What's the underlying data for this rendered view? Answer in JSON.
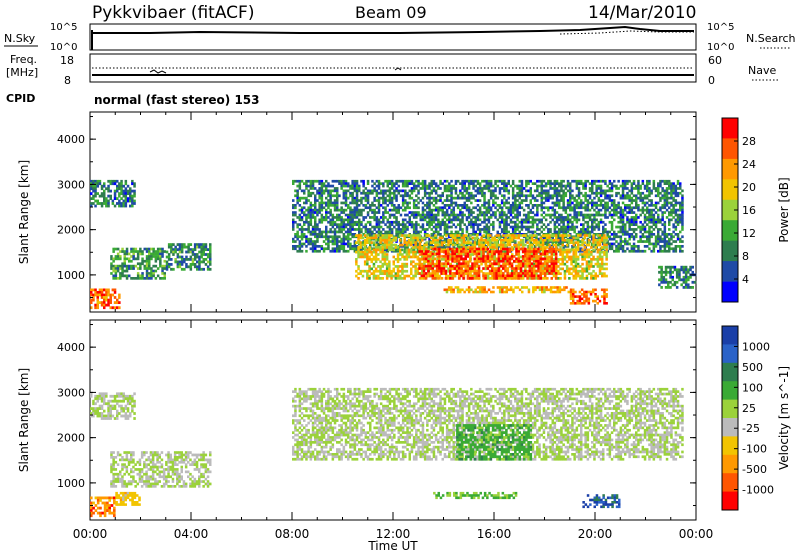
{
  "header": {
    "title": "Pykkvibaer (fitACF)",
    "beam": "Beam 09",
    "date": "14/Mar/2010"
  },
  "panels": {
    "nsky_label": "N.Sky",
    "nsearch_label": "N.Search",
    "freq_label_line1": "Freq.",
    "freq_label_line2": "[MHz]",
    "nave_label": "Nave",
    "cpid_label": "CPID",
    "cpid_value": "normal (fast stereo) 153",
    "nsky_ticks": [
      "10^5",
      "10^0"
    ],
    "nsearch_ticks": [
      "10^5",
      "10^0"
    ],
    "freq_ticks": [
      "18",
      "8"
    ],
    "nave_ticks": [
      "60",
      "0"
    ]
  },
  "colors": {
    "power": [
      "#0000ff",
      "#1f4aa6",
      "#2e7d4f",
      "#3aaa35",
      "#9bd23a",
      "#f2c400",
      "#ff9900",
      "#ff5500",
      "#ff0000"
    ],
    "velocity": [
      "#1a3fa8",
      "#2a62c8",
      "#2e7d4f",
      "#3aaa35",
      "#9bd23a",
      "#bbbbbb",
      "#f2c400",
      "#ff9900",
      "#ff5500",
      "#ff0000"
    ],
    "ground_scatter": "#bbbbbb"
  },
  "chart_data": [
    {
      "type": "heatmap",
      "title": "",
      "xlabel": "Time UT",
      "ylabel": "Slant Range [km]",
      "x_ticks": [
        "00:00",
        "04:00",
        "08:00",
        "12:00",
        "16:00",
        "20:00",
        "00:00"
      ],
      "y_ticks": [
        "1000",
        "2000",
        "3000",
        "4000"
      ],
      "ylim": [
        180,
        4600
      ],
      "colorbar": {
        "label": "Power [dB]",
        "ticks": [
          "28",
          "24",
          "20",
          "16",
          "12",
          "8",
          "4"
        ],
        "range": [
          0,
          30
        ]
      },
      "regions": [
        {
          "t0": 0.0,
          "t1": 1.2,
          "r0": 250,
          "r1": 700,
          "value": 24
        },
        {
          "t0": 0.0,
          "t1": 1.8,
          "r0": 2500,
          "r1": 3100,
          "value": 8
        },
        {
          "t0": 0.8,
          "t1": 3.0,
          "r0": 900,
          "r1": 1600,
          "value": 10
        },
        {
          "t0": 3.0,
          "t1": 4.8,
          "r0": 1100,
          "r1": 1700,
          "value": 9
        },
        {
          "t0": 8.0,
          "t1": 23.5,
          "r0": 1500,
          "r1": 3100,
          "value": 8
        },
        {
          "t0": 10.5,
          "t1": 20.5,
          "r0": 900,
          "r1": 1900,
          "value": 18
        },
        {
          "t0": 13.0,
          "t1": 18.5,
          "r0": 900,
          "r1": 1600,
          "value": 26
        },
        {
          "t0": 14.0,
          "t1": 19.0,
          "r0": 600,
          "r1": 750,
          "value": 20
        },
        {
          "t0": 19.0,
          "t1": 20.5,
          "r0": 350,
          "r1": 700,
          "value": 24
        },
        {
          "t0": 22.5,
          "t1": 24.0,
          "r0": 700,
          "r1": 1200,
          "value": 8
        }
      ]
    },
    {
      "type": "heatmap",
      "title": "",
      "xlabel": "Time UT",
      "ylabel": "Slant Range [km]",
      "x_ticks": [
        "00:00",
        "04:00",
        "08:00",
        "12:00",
        "16:00",
        "20:00",
        "00:00"
      ],
      "y_ticks": [
        "1000",
        "2000",
        "3000",
        "4000"
      ],
      "ylim": [
        180,
        4600
      ],
      "colorbar": {
        "label": "Velocity [m s^-1]",
        "ticks": [
          "1000",
          "500",
          "100",
          "25",
          "-25",
          "-100",
          "-500",
          "-1000"
        ],
        "range": [
          -1000,
          1000
        ]
      },
      "regions": [
        {
          "t0": 0.0,
          "t1": 1.8,
          "r0": 2400,
          "r1": 3000,
          "value": 0
        },
        {
          "t0": 0.0,
          "t1": 1.0,
          "r0": 250,
          "r1": 700,
          "value": -600
        },
        {
          "t0": 0.8,
          "t1": 4.8,
          "r0": 900,
          "r1": 1700,
          "value": 0
        },
        {
          "t0": 8.0,
          "t1": 23.5,
          "r0": 1500,
          "r1": 3100,
          "value": 0
        },
        {
          "t0": 14.5,
          "t1": 17.5,
          "r0": 1500,
          "r1": 2300,
          "value": 300
        },
        {
          "t0": 13.5,
          "t1": 17.0,
          "r0": 650,
          "r1": 800,
          "value": 200
        },
        {
          "t0": 19.5,
          "t1": 21.0,
          "r0": 450,
          "r1": 750,
          "value": 800
        },
        {
          "t0": 1.0,
          "t1": 2.0,
          "r0": 500,
          "r1": 800,
          "value": -300
        }
      ]
    }
  ]
}
